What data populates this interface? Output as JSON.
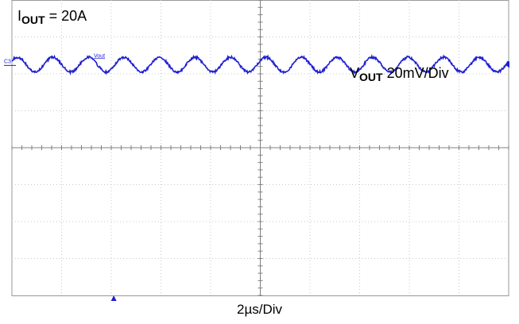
{
  "annotations": {
    "iout_symbol": "I",
    "iout_sub": "OUT",
    "iout_value": " = 20A",
    "vout_symbol": "V",
    "vout_sub": "OUT",
    "vout_scale": " 20mV/Div",
    "time_scale": "2µs/Div",
    "channel_marker": "C3",
    "trace_label": "Vout"
  },
  "chart_data": {
    "type": "line",
    "title": "",
    "xlabel": "2µs/Div",
    "ylabel": "VOUT 20mV/Div",
    "grid": true,
    "xdiv": 10,
    "ydiv": 8,
    "ylim": [
      -80,
      80
    ],
    "xlim": [
      0,
      20
    ],
    "x_unit": "µs",
    "y_unit": "mV",
    "series": [
      {
        "name": "Vout",
        "color": "#1f1fd0",
        "offset_mV": 45,
        "amplitude_mV": 4,
        "period_us": 1.43,
        "cycles": 14
      }
    ]
  }
}
